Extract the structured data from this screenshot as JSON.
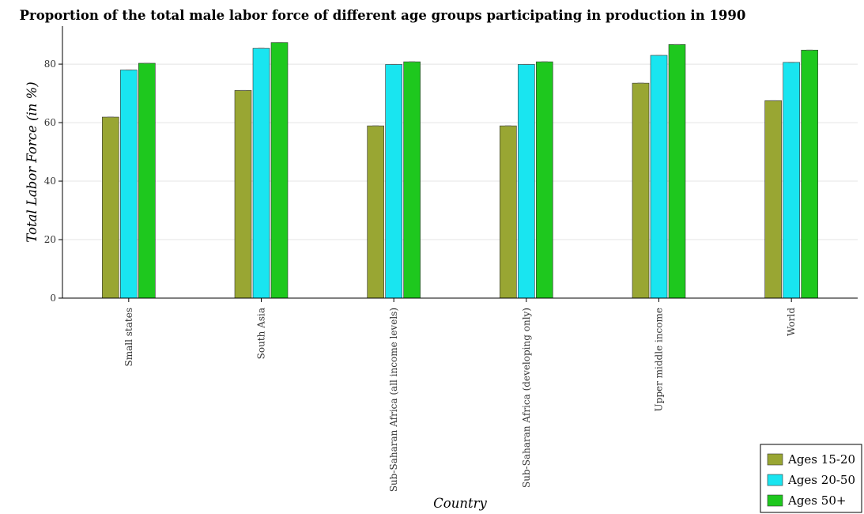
{
  "chart_data": {
    "type": "bar",
    "title": "Proportion of the total male labor force of different age groups participating in production in 1990",
    "xlabel": "Country",
    "ylabel": "Total Labor Force (in %)",
    "ylim": [
      0,
      93
    ],
    "yticks": [
      0,
      20,
      40,
      60,
      80
    ],
    "grid": true,
    "legend_position": "bottom-right",
    "categories": [
      "Small states",
      "South Asia",
      "Sub-Saharan Africa (all income levels)",
      "Sub-Saharan Africa (developing only)",
      "Upper middle income",
      "World"
    ],
    "series": [
      {
        "name": "Ages 15-20",
        "color": "#99a633",
        "values": [
          61.9,
          71.0,
          58.9,
          58.9,
          73.5,
          67.5
        ]
      },
      {
        "name": "Ages 20-50",
        "color": "#19e5f0",
        "values": [
          78.0,
          85.4,
          79.9,
          79.9,
          83.0,
          80.6
        ]
      },
      {
        "name": "Ages 50+",
        "color": "#1ec81e",
        "values": [
          80.3,
          87.4,
          80.8,
          80.8,
          86.7,
          84.8
        ]
      }
    ]
  }
}
